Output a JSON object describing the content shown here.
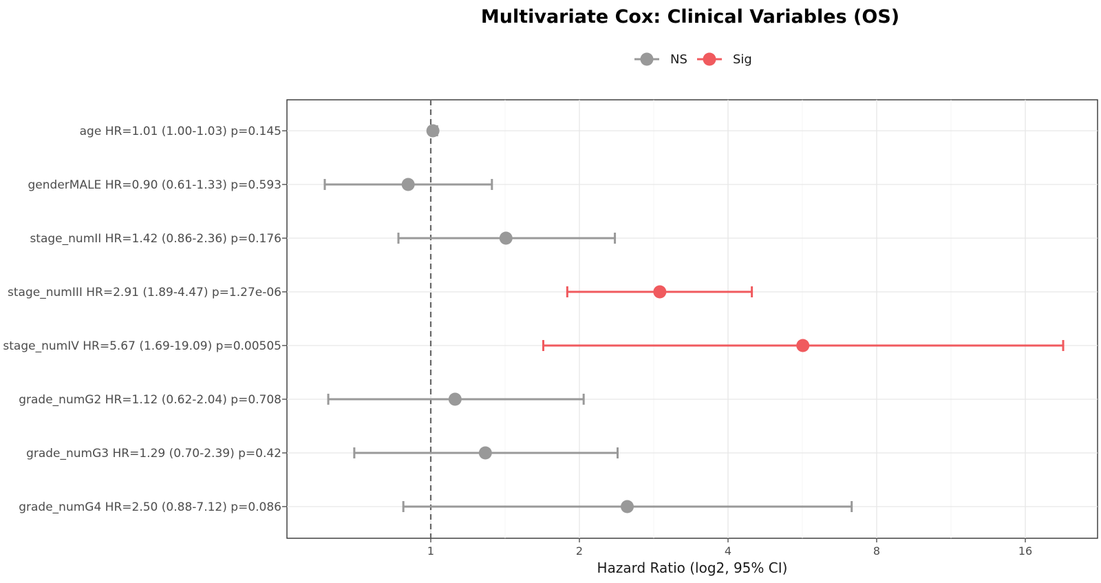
{
  "chart_data": {
    "type": "forest",
    "title": "Multivariate Cox: Clinical Variables (OS)",
    "xlabel": "Hazard Ratio (log2, 95% CI)",
    "x_scale": "log2",
    "xlim": [
      0.62,
      21.0
    ],
    "x_ticks": [
      1,
      2,
      4,
      8,
      16
    ],
    "x_tick_labels": [
      "1",
      "2",
      "4",
      "8",
      "16"
    ],
    "reference_line": 1,
    "grid": true,
    "legend": {
      "position": "top",
      "entries": [
        {
          "name": "NS",
          "color": "#999999"
        },
        {
          "name": "Sig",
          "color": "#F05A5E"
        }
      ]
    },
    "rows": [
      {
        "label": "age  HR=1.01 (1.00-1.03)  p=0.145",
        "hr": 1.01,
        "lower": 1.0,
        "upper": 1.03,
        "group": "NS"
      },
      {
        "label": "genderMALE  HR=0.90 (0.61-1.33)  p=0.593",
        "hr": 0.9,
        "lower": 0.61,
        "upper": 1.33,
        "group": "NS"
      },
      {
        "label": "stage_numII  HR=1.42 (0.86-2.36)  p=0.176",
        "hr": 1.42,
        "lower": 0.86,
        "upper": 2.36,
        "group": "NS"
      },
      {
        "label": "stage_numIII  HR=2.91 (1.89-4.47)  p=1.27e-06",
        "hr": 2.91,
        "lower": 1.89,
        "upper": 4.47,
        "group": "Sig"
      },
      {
        "label": "stage_numIV  HR=5.67 (1.69-19.09)  p=0.00505",
        "hr": 5.67,
        "lower": 1.69,
        "upper": 19.09,
        "group": "Sig"
      },
      {
        "label": "grade_numG2  HR=1.12 (0.62-2.04)  p=0.708",
        "hr": 1.12,
        "lower": 0.62,
        "upper": 2.04,
        "group": "NS"
      },
      {
        "label": "grade_numG3  HR=1.29 (0.70-2.39)  p=0.42",
        "hr": 1.29,
        "lower": 0.7,
        "upper": 2.39,
        "group": "NS"
      },
      {
        "label": "grade_numG4  HR=2.50 (0.88-7.12)  p=0.086",
        "hr": 2.5,
        "lower": 0.88,
        "upper": 7.12,
        "group": "NS"
      }
    ]
  }
}
